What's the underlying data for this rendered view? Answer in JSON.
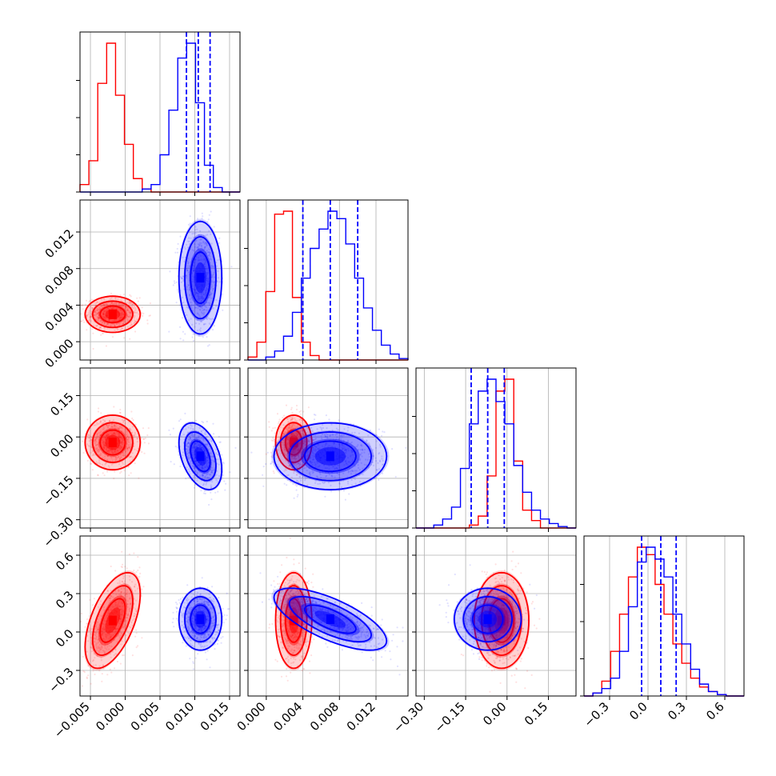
{
  "colors": {
    "series_a": "#ff0000",
    "series_b": "#0000ff",
    "grid": "#b0b0b0",
    "axis": "#000000"
  },
  "chart_data": {
    "type": "corner",
    "grid": true,
    "parameters": [
      {
        "range": [
          -0.0065,
          0.0165
        ],
        "ticks": [
          -0.005,
          0.0,
          0.005,
          0.01,
          0.015
        ],
        "tick_labels": [
          "−0.005",
          "0.000",
          "0.005",
          "0.010",
          "0.015"
        ]
      },
      {
        "range": [
          -0.002,
          0.0155
        ],
        "ticks": [
          0.0,
          0.004,
          0.008,
          0.012
        ],
        "tick_labels": [
          "0.000",
          "0.004",
          "0.008",
          "0.012"
        ]
      },
      {
        "range": [
          -0.33,
          0.25
        ],
        "ticks": [
          -0.3,
          -0.15,
          0.0,
          0.15
        ],
        "tick_labels": [
          "−0.30",
          "−0.15",
          "0.00",
          "0.15"
        ]
      },
      {
        "range": [
          -0.5,
          0.75
        ],
        "ticks": [
          -0.3,
          0.0,
          0.3,
          0.6
        ],
        "tick_labels": [
          "−0.3",
          "0.0",
          "0.3",
          "0.6"
        ]
      }
    ],
    "series": [
      {
        "color": "#ff0000",
        "mean": [
          -0.0018,
          0.003,
          -0.02,
          0.09
        ],
        "sd": [
          0.0018,
          0.0009,
          0.045,
          0.17
        ],
        "corr": [
          [
            1,
            0,
            0,
            0.55
          ],
          [
            0,
            1,
            0,
            0
          ],
          [
            0,
            0,
            1,
            0
          ],
          [
            0.55,
            0,
            0,
            1
          ]
        ],
        "hist": [
          [
            0.05,
            0.21,
            0.73,
            1.0,
            0.65,
            0.32,
            0.09,
            0.02,
            0,
            0,
            0,
            0,
            0,
            0,
            0,
            0,
            0,
            0
          ],
          [
            0.02,
            0.12,
            0.46,
            0.98,
            1.0,
            0.42,
            0.12,
            0.03,
            0,
            0,
            0,
            0,
            0,
            0,
            0,
            0,
            0,
            0
          ],
          [
            0,
            0,
            0,
            0,
            0,
            0,
            0.02,
            0.08,
            0.35,
            0.92,
            1.0,
            0.45,
            0.12,
            0.05,
            0,
            0,
            0,
            0
          ],
          [
            0,
            0.02,
            0.1,
            0.3,
            0.55,
            0.8,
            1.0,
            0.95,
            0.75,
            0.55,
            0.35,
            0.22,
            0.12,
            0.06,
            0.03,
            0.01,
            0,
            0
          ]
        ]
      },
      {
        "color": "#0000ff",
        "mean": [
          0.0108,
          0.007,
          -0.07,
          0.1
        ],
        "sd": [
          0.0014,
          0.0028,
          0.055,
          0.11
        ],
        "corr": [
          [
            1,
            0,
            -0.4,
            0
          ],
          [
            0,
            1,
            0,
            -0.7
          ],
          [
            -0.4,
            0,
            1,
            0
          ],
          [
            0,
            -0.7,
            0,
            1
          ]
        ],
        "quantiles": [
          [
            0.0088,
            0.0105,
            0.0122
          ],
          [
            0.004,
            0.007,
            0.01
          ],
          [
            -0.13,
            -0.07,
            -0.01
          ],
          [
            -0.05,
            0.1,
            0.22
          ]
        ],
        "hist": [
          [
            0,
            0,
            0,
            0,
            0,
            0,
            0,
            0.02,
            0.05,
            0.25,
            0.55,
            0.9,
            1.0,
            0.6,
            0.18,
            0.03,
            0,
            0
          ],
          [
            0,
            0,
            0.02,
            0.06,
            0.16,
            0.32,
            0.55,
            0.75,
            0.88,
            1.0,
            0.95,
            0.78,
            0.55,
            0.35,
            0.2,
            0.1,
            0.04,
            0.01
          ],
          [
            0,
            0,
            0.02,
            0.06,
            0.14,
            0.4,
            0.7,
            0.92,
            1.0,
            0.85,
            0.7,
            0.42,
            0.24,
            0.12,
            0.06,
            0.03,
            0.01,
            0
          ],
          [
            0,
            0.02,
            0.05,
            0.12,
            0.3,
            0.6,
            0.9,
            1.0,
            0.92,
            0.8,
            0.55,
            0.35,
            0.18,
            0.08,
            0.03,
            0.01,
            0,
            0
          ]
        ]
      }
    ]
  }
}
